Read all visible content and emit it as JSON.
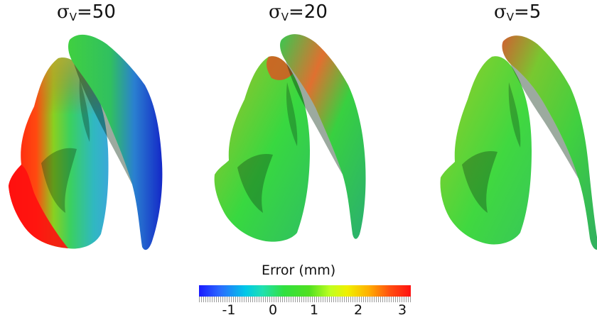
{
  "panels": [
    {
      "sigma": "σ",
      "subscript": "V",
      "value": "=50"
    },
    {
      "sigma": "σ",
      "subscript": "V",
      "value": "=20"
    },
    {
      "sigma": "σ",
      "subscript": "V",
      "value": "=5"
    }
  ],
  "colorbar": {
    "title": "Error (mm)",
    "ticks": [
      "-1",
      "0",
      "1",
      "2",
      "3"
    ],
    "colors": [
      "#1a1aff",
      "#00c8e8",
      "#30e040",
      "#f0f000",
      "#ff1010"
    ]
  }
}
